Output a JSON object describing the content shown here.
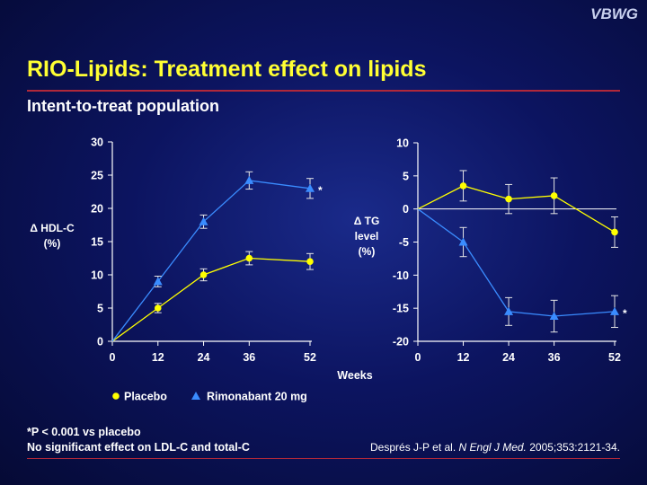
{
  "header": {
    "logo": "VBWG",
    "title": "RIO-Lipids: Treatment effect on lipids",
    "subtitle": "Intent-to-treat population"
  },
  "colors": {
    "placebo": "#ffff00",
    "rimonabant": "#3a8cff",
    "title": "#ffff33",
    "rule": "#b0283a"
  },
  "chart_data": [
    {
      "type": "line",
      "ylabel": [
        "Δ HDL-C",
        "(%)"
      ],
      "x": [
        0,
        12,
        24,
        36,
        52
      ],
      "xticks": [
        "0",
        "12",
        "24",
        "36",
        "52"
      ],
      "ylim": [
        0,
        30
      ],
      "yticks": [
        0,
        5,
        10,
        15,
        20,
        25,
        30
      ],
      "zero_line": false,
      "series": [
        {
          "name": "Placebo",
          "values": [
            0,
            5,
            10,
            12.5,
            12
          ],
          "errors": [
            0,
            0.7,
            0.9,
            1.0,
            1.2
          ]
        },
        {
          "name": "Rimonabant 20 mg",
          "values": [
            0,
            9,
            18,
            24.2,
            23
          ],
          "errors": [
            0,
            0.8,
            1.0,
            1.3,
            1.5
          ]
        }
      ],
      "annotation": "*"
    },
    {
      "type": "line",
      "ylabel": [
        "Δ TG",
        "level",
        "(%)"
      ],
      "xlabel": "Weeks",
      "x": [
        0,
        12,
        24,
        36,
        52
      ],
      "xticks": [
        "0",
        "12",
        "24",
        "36",
        "52"
      ],
      "ylim": [
        -20,
        10
      ],
      "yticks": [
        -20,
        -15,
        -10,
        -5,
        0,
        5,
        10
      ],
      "zero_line": true,
      "series": [
        {
          "name": "Placebo",
          "values": [
            0,
            3.5,
            1.5,
            2,
            -3.5
          ],
          "errors": [
            0,
            2.3,
            2.2,
            2.7,
            2.3
          ]
        },
        {
          "name": "Rimonabant 20 mg",
          "values": [
            0,
            -5,
            -15.5,
            -16.2,
            -15.5
          ],
          "errors": [
            0,
            2.2,
            2.1,
            2.4,
            2.4
          ]
        }
      ],
      "annotation": "*"
    }
  ],
  "legend": {
    "placebo": "Placebo",
    "rimonabant": "Rimonabant 20 mg"
  },
  "footnotes": {
    "line1": "*P < 0.001 vs placebo",
    "line2": "No significant effect on LDL-C and total-C"
  },
  "citation": {
    "authors": "Després J-P et al.",
    "journal": "N Engl J Med.",
    "details": "2005;353:2121-34."
  }
}
